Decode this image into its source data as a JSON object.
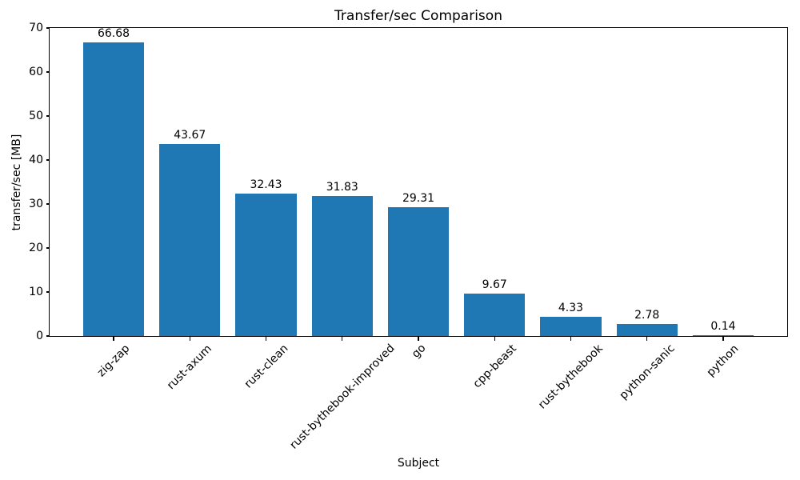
{
  "chart_data": {
    "type": "bar",
    "title": "Transfer/sec Comparison",
    "xlabel": "Subject",
    "ylabel": "transfer/sec [MB]",
    "categories": [
      "zig-zap",
      "rust-axum",
      "rust-clean",
      "rust-bythebook-improved",
      "go",
      "cpp-beast",
      "rust-bythebook",
      "python-sanic",
      "python"
    ],
    "values": [
      66.68,
      43.67,
      32.43,
      31.83,
      29.31,
      9.67,
      4.33,
      2.78,
      0.14
    ],
    "value_labels": [
      "66.68",
      "43.67",
      "32.43",
      "31.83",
      "29.31",
      "9.67",
      "4.33",
      "2.78",
      "0.14"
    ],
    "ylim": [
      0,
      70
    ],
    "yticks": [
      0,
      10,
      20,
      30,
      40,
      50,
      60,
      70
    ],
    "bar_color": "#1f77b4",
    "text_color": "#000000",
    "grid": false,
    "legend": null,
    "bar_width_fraction": 0.8,
    "x_tick_rotation_deg": 45
  }
}
